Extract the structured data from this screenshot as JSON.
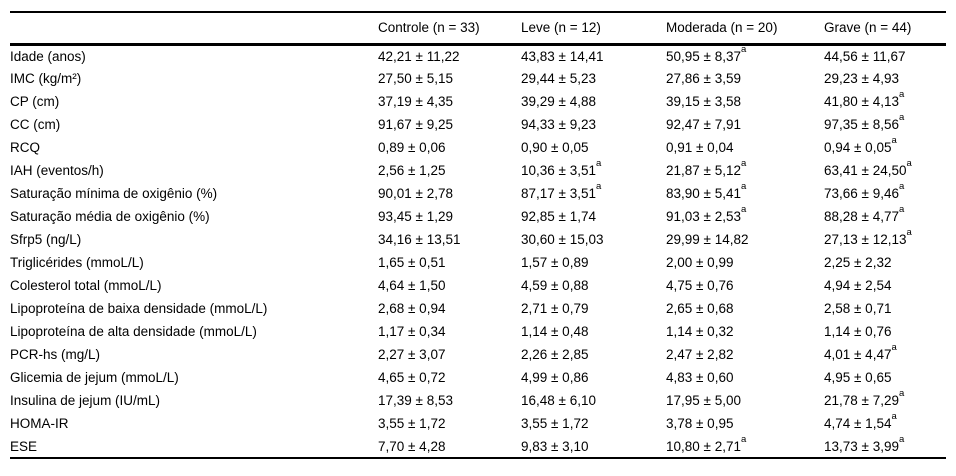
{
  "table": {
    "columns": [
      "",
      "Controle (n = 33)",
      "Leve (n = 12)",
      "Moderada (n = 20)",
      "Grave (n = 44)"
    ],
    "significance_marker": "a",
    "rows": [
      {
        "label": "Idade (anos)",
        "values": [
          "42,21 ± 11,22",
          "43,83 ± 14,41",
          "50,95 ± 8,37^a",
          "44,56 ± 11,67"
        ]
      },
      {
        "label": "IMC (kg/m²)",
        "values": [
          "27,50 ± 5,15",
          "29,44 ± 5,23",
          "27,86 ± 3,59",
          "29,23 ± 4,93"
        ]
      },
      {
        "label": "CP (cm)",
        "values": [
          "37,19 ± 4,35",
          "39,29 ± 4,88",
          "39,15 ± 3,58",
          "41,80 ± 4,13^a"
        ]
      },
      {
        "label": "CC (cm)",
        "values": [
          "91,67 ± 9,25",
          "94,33 ± 9,23",
          "92,47 ± 7,91",
          "97,35 ± 8,56^a"
        ]
      },
      {
        "label": "RCQ",
        "values": [
          "0,89 ± 0,06",
          "0,90 ± 0,05",
          "0,91 ± 0,04",
          "0,94 ± 0,05^a"
        ]
      },
      {
        "label": "IAH (eventos/h)",
        "values": [
          "2,56 ± 1,25",
          "10,36 ± 3,51^a",
          "21,87 ± 5,12^a",
          "63,41 ± 24,50^a"
        ]
      },
      {
        "label": "Saturação mínima de oxigênio (%)",
        "values": [
          "90,01 ± 2,78",
          "87,17 ± 3,51^a",
          "83,90 ± 5,41^a",
          "73,66 ± 9,46^a"
        ]
      },
      {
        "label": "Saturação média de oxigênio (%)",
        "values": [
          "93,45 ± 1,29",
          "92,85 ± 1,74",
          "91,03 ± 2,53^a",
          "88,28 ± 4,77^a"
        ]
      },
      {
        "label": "Sfrp5 (ng/L)",
        "values": [
          "34,16 ± 13,51",
          "30,60 ± 15,03",
          "29,99 ± 14,82",
          "27,13 ± 12,13^a"
        ]
      },
      {
        "label": "Triglicérides (mmoL/L)",
        "values": [
          "1,65 ± 0,51",
          "1,57 ± 0,89",
          "2,00 ± 0,99",
          "2,25 ± 2,32"
        ]
      },
      {
        "label": "Colesterol total (mmoL/L)",
        "values": [
          "4,64 ± 1,50",
          "4,59 ± 0,88",
          "4,75 ± 0,76",
          "4,94 ± 2,54"
        ]
      },
      {
        "label": "Lipoproteína de baixa densidade (mmoL/L)",
        "values": [
          "2,68 ± 0,94",
          "2,71 ± 0,79",
          "2,65 ± 0,68",
          "2,58 ± 0,71"
        ]
      },
      {
        "label": "Lipoproteína de alta densidade (mmoL/L)",
        "values": [
          "1,17 ± 0,34",
          "1,14 ± 0,48",
          "1,14 ± 0,32",
          "1,14 ± 0,76"
        ]
      },
      {
        "label": "PCR-hs (mg/L)",
        "values": [
          "2,27 ± 3,07",
          "2,26 ± 2,85",
          "2,47 ± 2,82",
          "4,01 ± 4,47^a"
        ]
      },
      {
        "label": "Glicemia de jejum (mmoL/L)",
        "values": [
          "4,65 ± 0,72",
          "4,99 ± 0,86",
          "4,83 ± 0,60",
          "4,95 ± 0,65"
        ]
      },
      {
        "label": "Insulina de jejum (IU/mL)",
        "values": [
          "17,39 ± 8,53",
          "16,48 ± 6,10",
          "17,95 ± 5,00",
          "21,78 ± 7,29^a"
        ]
      },
      {
        "label": "HOMA-IR",
        "values": [
          "3,55 ± 1,72",
          "3,55 ± 1,72",
          "3,78 ± 0,95",
          "4,74 ± 1,54^a"
        ]
      },
      {
        "label": "ESE",
        "values": [
          "7,70 ± 4,28",
          "9,83 ± 3,10",
          "10,80 ± 2,71^a",
          "13,73 ± 3,99^a"
        ]
      }
    ]
  }
}
